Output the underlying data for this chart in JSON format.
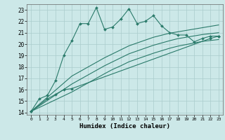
{
  "xlabel": "Humidex (Indice chaleur)",
  "bg_color": "#cce8e8",
  "grid_color": "#aacccc",
  "line_color": "#2a7a6a",
  "xlim": [
    -0.5,
    23.5
  ],
  "ylim": [
    13.8,
    23.5
  ],
  "x_ticks": [
    0,
    1,
    2,
    3,
    4,
    5,
    6,
    7,
    8,
    9,
    10,
    11,
    12,
    13,
    14,
    15,
    16,
    17,
    18,
    19,
    20,
    21,
    22,
    23
  ],
  "y_ticks": [
    14,
    15,
    16,
    17,
    18,
    19,
    20,
    21,
    22,
    23
  ],
  "series1_x": [
    0,
    1,
    2,
    3,
    4,
    5,
    6,
    7,
    8,
    9,
    10,
    11,
    12,
    13,
    14,
    15,
    16,
    17,
    18,
    19,
    20,
    21,
    22,
    23
  ],
  "series1_y": [
    14.1,
    15.2,
    15.5,
    16.8,
    19.0,
    20.3,
    21.8,
    21.8,
    23.2,
    21.3,
    21.5,
    22.2,
    23.1,
    21.8,
    22.0,
    22.5,
    21.6,
    21.0,
    20.8,
    20.8,
    20.2,
    20.5,
    20.7,
    20.7
  ],
  "series2_x": [
    0,
    2,
    3,
    4,
    5,
    22,
    23
  ],
  "series2_y": [
    14.1,
    15.2,
    15.6,
    16.0,
    16.1,
    20.5,
    20.7
  ],
  "series3_x": [
    0,
    1,
    2,
    3,
    4,
    5,
    6,
    7,
    8,
    9,
    10,
    11,
    12,
    13,
    14,
    15,
    16,
    17,
    18,
    19,
    20,
    21,
    22,
    23
  ],
  "series3_y": [
    14.1,
    14.72,
    15.34,
    15.96,
    16.58,
    17.2,
    17.6,
    18.0,
    18.4,
    18.8,
    19.15,
    19.5,
    19.85,
    20.1,
    20.35,
    20.6,
    20.78,
    20.96,
    21.08,
    21.2,
    21.32,
    21.44,
    21.56,
    21.68
  ],
  "series4_x": [
    0,
    1,
    2,
    3,
    4,
    5,
    6,
    7,
    8,
    9,
    10,
    11,
    12,
    13,
    14,
    15,
    16,
    17,
    18,
    19,
    20,
    21,
    22,
    23
  ],
  "series4_y": [
    14.1,
    14.58,
    15.06,
    15.54,
    16.02,
    16.5,
    16.9,
    17.3,
    17.7,
    18.1,
    18.45,
    18.8,
    19.15,
    19.4,
    19.65,
    19.9,
    20.1,
    20.3,
    20.48,
    20.6,
    20.72,
    20.84,
    20.92,
    21.0
  ],
  "series5_x": [
    0,
    1,
    2,
    3,
    4,
    5,
    6,
    7,
    8,
    9,
    10,
    11,
    12,
    13,
    14,
    15,
    16,
    17,
    18,
    19,
    20,
    21,
    22,
    23
  ],
  "series5_y": [
    14.1,
    14.44,
    14.78,
    15.12,
    15.46,
    15.8,
    16.2,
    16.6,
    17.0,
    17.4,
    17.78,
    18.1,
    18.45,
    18.7,
    18.95,
    19.2,
    19.42,
    19.64,
    19.82,
    19.96,
    20.1,
    20.24,
    20.32,
    20.4
  ]
}
